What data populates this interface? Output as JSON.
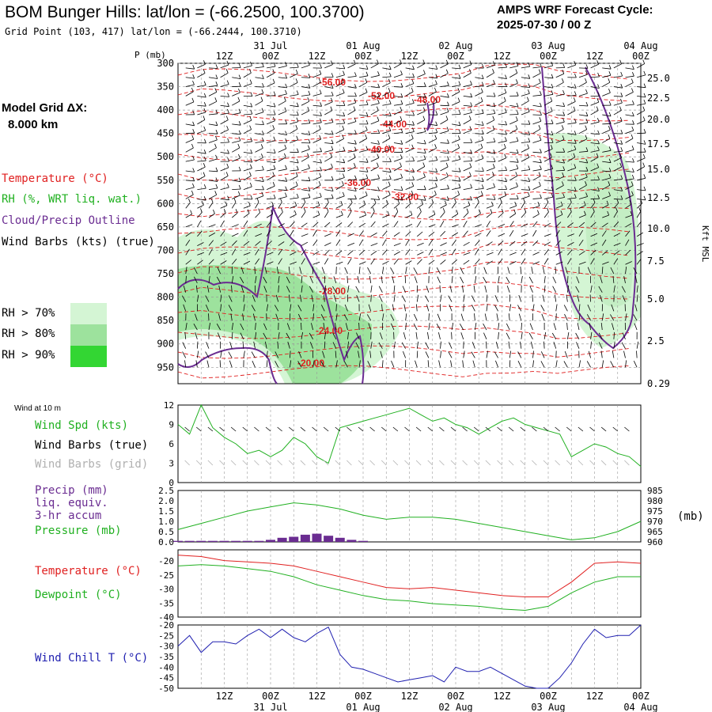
{
  "header": {
    "title": "BOM Bunger Hills:  lat/lon = (-66.2500, 100.3700)",
    "grid_point": "Grid Point (103, 417) lat/lon = (-66.2444, 100.3710)",
    "cycle_label": "AMPS WRF Forecast Cycle:",
    "cycle_value": "2025-07-30 / 00  Z"
  },
  "side": {
    "model_grid_label": "Model Grid ΔX:",
    "model_grid_value": "8.000 km"
  },
  "legend": {
    "temperature": {
      "label": "Temperature (°C)",
      "color": "#e02020"
    },
    "rh": {
      "label": "RH (%, WRT liq. wat.)",
      "color": "#20b020"
    },
    "cloud": {
      "label": "Cloud/Precip Outline",
      "color": "#6a2c91"
    },
    "wind": {
      "label": "Wind Barbs (kts) (true)",
      "color": "#000000"
    },
    "rh_boxes": [
      {
        "label": "RH > 70%",
        "color": "#d4f5d4"
      },
      {
        "label": "RH > 80%",
        "color": "#9de29d"
      },
      {
        "label": "RH > 90%",
        "color": "#33d633"
      }
    ]
  },
  "axes": {
    "p_label": "P (mb)",
    "pressure_ticks": [
      "300",
      "350",
      "400",
      "450",
      "500",
      "550",
      "600",
      "650",
      "700",
      "750",
      "800",
      "850",
      "900",
      "950"
    ],
    "kft_label": "Kft MSL",
    "kft_ticks": [
      "25.0",
      "22.5",
      "20.0",
      "17.5",
      "15.0",
      "12.5",
      "10.0",
      "7.5",
      "5.0",
      "2.5",
      "0.29"
    ],
    "time_ticks": [
      "12Z",
      "00Z",
      "12Z",
      "00Z",
      "12Z",
      "00Z",
      "12Z",
      "00Z",
      "12Z",
      "00Z"
    ],
    "date_ticks": [
      "31 Jul",
      "01 Aug",
      "02 Aug",
      "03 Aug",
      "04 Aug"
    ]
  },
  "temp_labels": [
    "-56.00",
    "-52.00",
    "-48.00",
    "-44.00",
    "-40.00",
    "-36.00",
    "-32.00",
    "-28.00",
    "-24.00",
    "-20.00"
  ],
  "panels": {
    "wind": {
      "title": "Wind at 10 m",
      "labels": [
        {
          "text": "Wind Spd (kts)",
          "color": "#20b020"
        },
        {
          "text": "Wind Barbs (true)",
          "color": "#000000"
        },
        {
          "text": "Wind Barbs (grid)",
          "color": "#b0b0b0"
        }
      ],
      "ticks": [
        "12",
        "9",
        "6",
        "3",
        "0"
      ]
    },
    "precip": {
      "labels": [
        {
          "text": "Precip (mm)",
          "color": "#6a2c91"
        },
        {
          "text": "liq. equiv.",
          "color": "#6a2c91"
        },
        {
          "text": "3-hr accum",
          "color": "#6a2c91"
        },
        {
          "text": "Pressure (mb)",
          "color": "#20b020"
        }
      ],
      "left_ticks": [
        "2.5",
        "2.0",
        "1.5",
        "1.0",
        "0.5",
        "0.0"
      ],
      "right_ticks": [
        "985",
        "980",
        "975",
        "970",
        "965",
        "960"
      ],
      "right_unit": "(mb)"
    },
    "temp": {
      "labels": [
        {
          "text": "Temperature (°C)",
          "color": "#e02020"
        },
        {
          "text": "Dewpoint (°C)",
          "color": "#20b020"
        }
      ],
      "ticks": [
        "-20",
        "-25",
        "-30",
        "-35",
        "-40"
      ]
    },
    "chill": {
      "labels": [
        {
          "text": "Wind Chill T (°C)",
          "color": "#2020b0"
        }
      ],
      "ticks": [
        "-20",
        "-25",
        "-30",
        "-35",
        "-40",
        "-45",
        "-50"
      ]
    }
  },
  "chart_data": [
    {
      "type": "line",
      "title": "Wind at 10 m",
      "x": [
        0,
        3,
        6,
        9,
        12,
        15,
        18,
        21,
        24,
        27,
        30,
        33,
        36,
        39,
        42,
        45,
        48,
        51,
        54,
        57,
        60,
        63,
        66,
        69,
        72,
        75,
        78,
        81,
        84,
        87,
        90,
        93,
        96,
        99,
        102,
        105,
        108,
        111,
        114,
        117,
        120
      ],
      "series": [
        {
          "name": "Wind Spd (kts)",
          "values": [
            9,
            7.5,
            12,
            8.5,
            7,
            6,
            4.5,
            5,
            4,
            5,
            7,
            6,
            4,
            3,
            8.5,
            9,
            9.5,
            10,
            10.5,
            11,
            11.5,
            10.5,
            9.5,
            10,
            9,
            8.5,
            7.5,
            8.5,
            9.5,
            10,
            9,
            8.5,
            8,
            7.5,
            4,
            5,
            6,
            5.5,
            4.5,
            4,
            2.5
          ]
        }
      ],
      "ylim": [
        0,
        12
      ]
    },
    {
      "type": "bar",
      "title": "Precip (mm) liq. equiv. 3-hr accum",
      "x": [
        0,
        3,
        6,
        9,
        12,
        15,
        18,
        21,
        24,
        27,
        30,
        33,
        36,
        39,
        42,
        45,
        48,
        51,
        54,
        57,
        60,
        63,
        66,
        69,
        72,
        75,
        78,
        81,
        84,
        87,
        90,
        93,
        96,
        99,
        102,
        105,
        108,
        111,
        114,
        117,
        120
      ],
      "values": [
        0.05,
        0.05,
        0.05,
        0.05,
        0.05,
        0.05,
        0.05,
        0.05,
        0.1,
        0.2,
        0.25,
        0.35,
        0.4,
        0.3,
        0.2,
        0.1,
        0.05,
        0,
        0,
        0,
        0,
        0,
        0,
        0,
        0,
        0,
        0,
        0,
        0,
        0,
        0,
        0,
        0,
        0,
        0,
        0,
        0,
        0,
        0,
        0,
        0
      ],
      "ylim": [
        0,
        2.5
      ]
    },
    {
      "type": "line",
      "title": "Pressure (mb)",
      "x": [
        0,
        6,
        12,
        18,
        24,
        30,
        36,
        42,
        48,
        54,
        60,
        66,
        72,
        78,
        84,
        90,
        96,
        102,
        108,
        114,
        120
      ],
      "series": [
        {
          "name": "Pressure (mb)",
          "values": [
            966,
            969,
            972,
            975,
            977,
            979,
            978,
            976,
            973,
            971,
            972,
            972,
            971,
            969,
            967,
            965,
            963,
            961,
            962,
            965,
            970
          ]
        }
      ],
      "ylim": [
        960,
        985
      ]
    },
    {
      "type": "line",
      "title": "Temperature / Dewpoint",
      "x": [
        0,
        6,
        12,
        18,
        24,
        30,
        36,
        42,
        48,
        54,
        60,
        66,
        72,
        78,
        84,
        90,
        96,
        102,
        108,
        114,
        120
      ],
      "series": [
        {
          "name": "Temperature (°C)",
          "values": [
            -17,
            -17.5,
            -19,
            -19.5,
            -20,
            -21,
            -23,
            -25,
            -27,
            -29,
            -29.5,
            -29,
            -30,
            -31,
            -32,
            -32.5,
            -32.5,
            -27,
            -20,
            -19.5,
            -20
          ]
        },
        {
          "name": "Dewpoint (°C)",
          "values": [
            -21,
            -20.5,
            -21,
            -22,
            -23,
            -25,
            -28,
            -30,
            -32,
            -33.5,
            -34,
            -35,
            -35.5,
            -36,
            -37,
            -37.5,
            -36,
            -31,
            -27,
            -25,
            -25
          ]
        }
      ],
      "ylim": [
        -40,
        -15
      ]
    },
    {
      "type": "line",
      "title": "Wind Chill T (°C)",
      "x": [
        0,
        3,
        6,
        9,
        12,
        15,
        18,
        21,
        24,
        27,
        30,
        33,
        36,
        39,
        42,
        45,
        48,
        51,
        54,
        57,
        60,
        63,
        66,
        69,
        72,
        75,
        78,
        81,
        84,
        87,
        90,
        93,
        96,
        99,
        102,
        105,
        108,
        111,
        114,
        117,
        120
      ],
      "series": [
        {
          "name": "Wind Chill T (°C)",
          "values": [
            -30,
            -25,
            -33,
            -28,
            -28,
            -29,
            -25,
            -22,
            -26,
            -22,
            -26,
            -28,
            -24,
            -21,
            -34,
            -40,
            -41,
            -43,
            -45,
            -47,
            -46,
            -45,
            -44,
            -47,
            -40,
            -42,
            -42,
            -40,
            -43,
            -46,
            -49,
            -50,
            -50,
            -45,
            -38,
            -29,
            -22,
            -26,
            -25,
            -25,
            -20
          ]
        }
      ],
      "ylim": [
        -50,
        -20
      ]
    }
  ]
}
